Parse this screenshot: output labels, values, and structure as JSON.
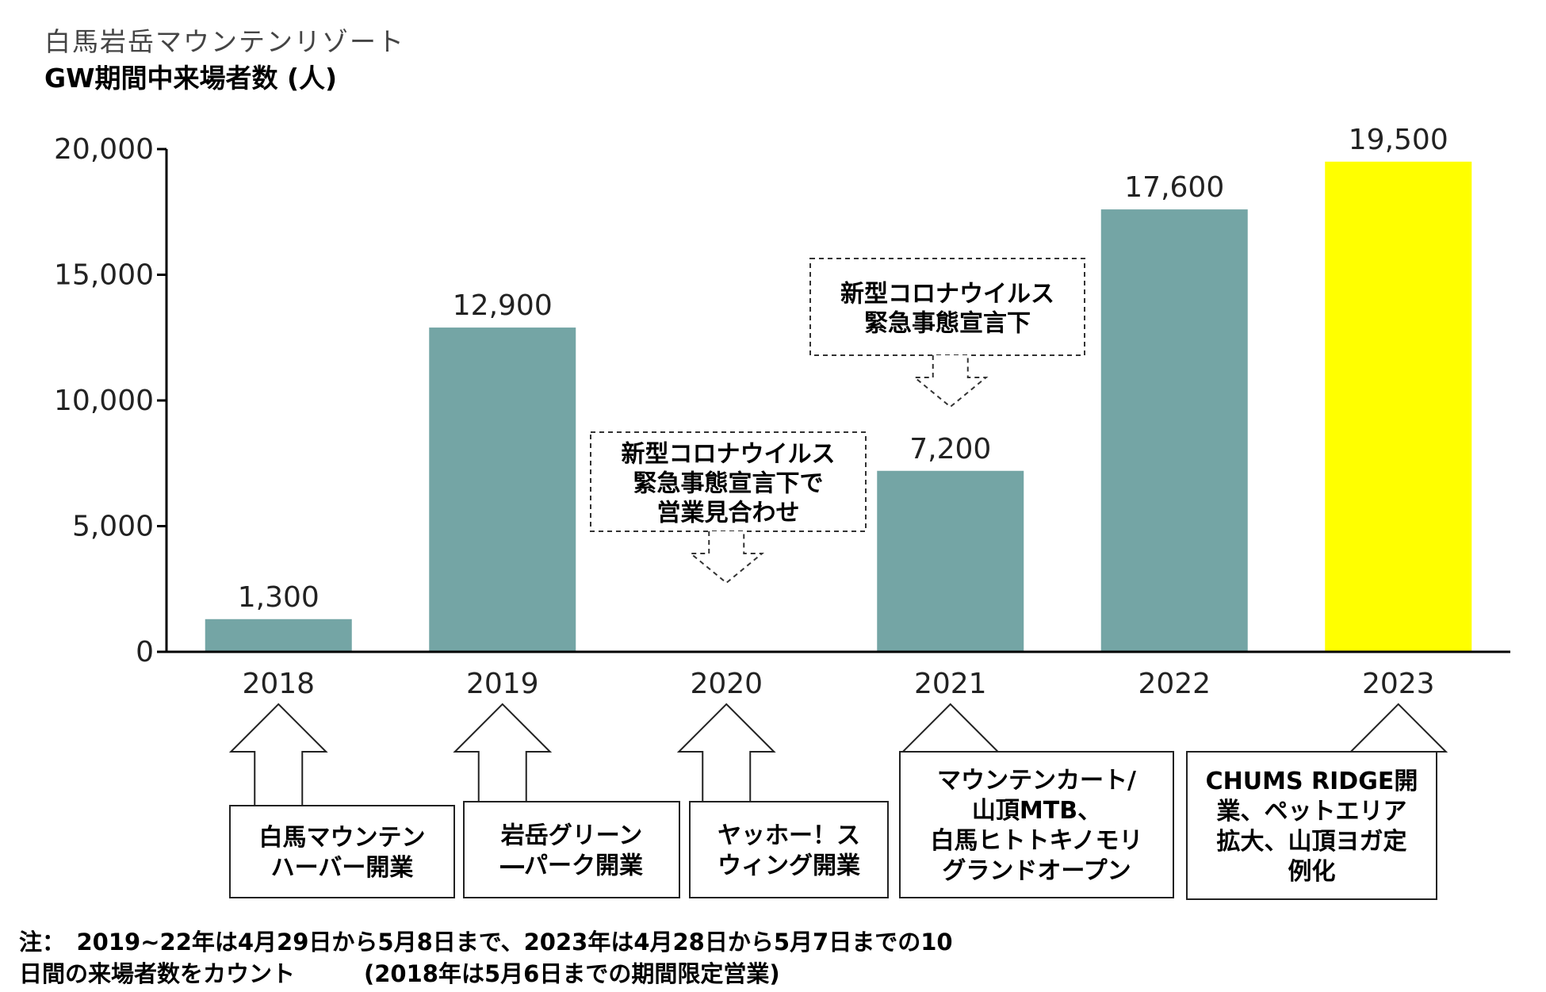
{
  "title_line1": "白馬岩岳マウンテンリゾート",
  "title_line2": "GW期間中来場者数 (人)",
  "chart_data": {
    "type": "bar",
    "categories": [
      "2018",
      "2019",
      "2020",
      "2021",
      "2022",
      "2023"
    ],
    "values": [
      1300,
      12900,
      null,
      7200,
      17600,
      19500
    ],
    "value_labels": [
      "1,300",
      "12,900",
      "",
      "7,200",
      "17,600",
      "19,500"
    ],
    "ylim": [
      0,
      20000
    ],
    "yticks": [
      0,
      5000,
      10000,
      15000,
      20000
    ],
    "ytick_labels": [
      "0",
      "5,000",
      "10,000",
      "15,000",
      "20,000"
    ],
    "grid": false,
    "colors": {
      "bar": "#74a5a5",
      "highlight": "#ffff00",
      "highlight_index": 5
    },
    "callouts": [
      {
        "category": "2020",
        "lines": [
          "新型コロナウイルス",
          "緊急事態宣言下で",
          "営業見合わせ"
        ]
      },
      {
        "category": "2021",
        "lines": [
          "新型コロナウイルス",
          "緊急事態宣言下"
        ]
      }
    ],
    "events": [
      {
        "category": "2018",
        "lines": [
          "白馬マウンテン",
          "ハーバー開業"
        ]
      },
      {
        "category": "2019",
        "lines": [
          "岩岳グリーン",
          "―パーク開業"
        ]
      },
      {
        "category": "2020",
        "lines": [
          "ヤッホー！ス",
          "ウィング開業"
        ]
      },
      {
        "category": "2021",
        "lines": [
          "マウンテンカート/",
          "山頂MTB、",
          "白馬ヒトトキノモリ",
          "グランドオープン"
        ]
      },
      {
        "category": "2023",
        "lines": [
          "CHUMS RIDGE開",
          "業、ペットエリア",
          "拡大、山頂ヨガ定",
          "例化"
        ]
      }
    ]
  },
  "note_line1": "注：　2019~22年は4月29日から5月8日まで、2023年は4月28日から5月7日までの10",
  "note_line2": "日間の来場者数をカウント　　　(2018年は5月6日までの期間限定営業)"
}
